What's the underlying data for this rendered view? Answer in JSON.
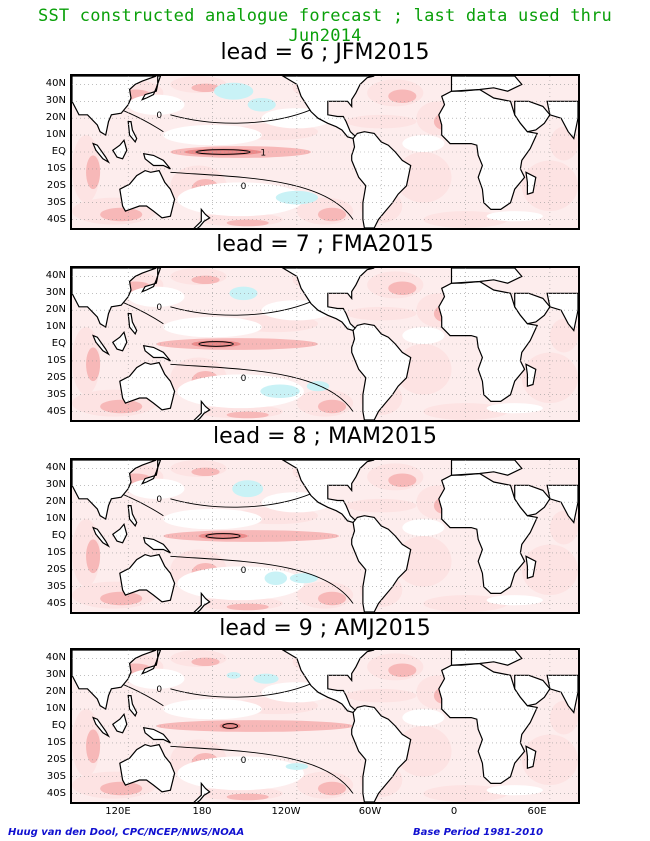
{
  "title": "SST constructed analogue forecast ; last data used thru Jun2014",
  "panels": [
    {
      "label": "lead = 6 ; JFM2015"
    },
    {
      "label": "lead = 7 ; FMA2015"
    },
    {
      "label": "lead = 8 ; MAM2015"
    },
    {
      "label": "lead = 9 ; AMJ2015"
    }
  ],
  "lat_labels": [
    "40N",
    "30N",
    "20N",
    "10N",
    "EQ",
    "10S",
    "20S",
    "30S",
    "40S"
  ],
  "lon_labels": [
    "120E",
    "180",
    "120W",
    "60W",
    "0",
    "60E"
  ],
  "contour_labels": [
    "0",
    "1"
  ],
  "footer": {
    "left": "Huug van den Dool, CPC/NCEP/NWS/NOAA",
    "right": "Base Period 1981-2010"
  },
  "colors": {
    "title": "#0aa00a",
    "footer": "#1010d0",
    "warm_light": "#fde3e3",
    "warm_mid": "#f7b8b8",
    "warm_strong": "#ec8a8a",
    "cool": "#c9f2f6",
    "land": "#ffffff"
  }
}
